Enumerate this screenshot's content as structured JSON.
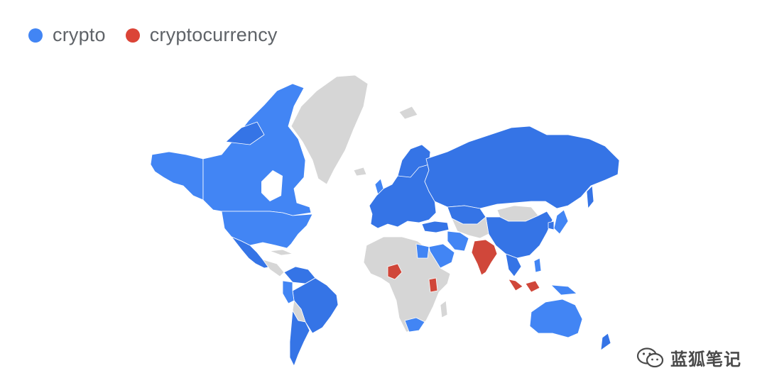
{
  "legend": {
    "items": [
      {
        "label": "crypto",
        "color": "#4285f4"
      },
      {
        "label": "cryptocurrency",
        "color": "#db4437"
      }
    ]
  },
  "colors": {
    "crypto": "#4285f4",
    "crypto_dark": "#3574e6",
    "cryptocurrency": "#d0473a",
    "no_data": "#d6d6d6"
  },
  "regions": {
    "crypto": [
      "Canada",
      "United States",
      "Alaska",
      "Mexico",
      "Brazil",
      "Argentina",
      "Chile",
      "Venezuela",
      "Colombia",
      "Peru",
      "Europe",
      "Russia",
      "Kazakhstan",
      "China",
      "Japan",
      "Turkey",
      "Iran",
      "Saudi Arabia",
      "Egypt",
      "South Africa",
      "Australia",
      "New Zealand",
      "Vietnam",
      "Thailand",
      "Philippines",
      "South Korea"
    ],
    "cryptocurrency": [
      "India",
      "Nigeria",
      "Kenya",
      "Malaysia",
      "Indonesia"
    ],
    "no_data": [
      "Greenland",
      "Iceland",
      "Mongolia",
      "Africa",
      "Middle East",
      "Central Asia",
      "Bolivia",
      "Paraguay"
    ]
  },
  "watermark": {
    "icon": "wechat-icon",
    "text": "蓝狐笔记"
  }
}
